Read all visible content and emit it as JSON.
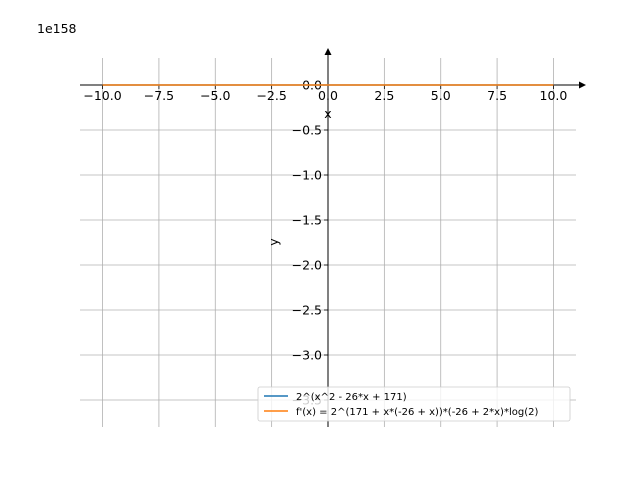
{
  "chart_data": {
    "type": "line",
    "title": "",
    "xlabel": "x",
    "ylabel": "y",
    "offset_text": "1e158",
    "xlim": [
      -11.0,
      11.0
    ],
    "ylim": [
      -3.8,
      0.3
    ],
    "x_ticks": [
      -10.0,
      -7.5,
      -5.0,
      -2.5,
      0.0,
      2.5,
      5.0,
      7.5,
      10.0
    ],
    "x_tick_labels": [
      "−10.0",
      "−7.5",
      "−5.0",
      "−2.5",
      "0.0",
      "2.5",
      "5.0",
      "7.5",
      "10.0"
    ],
    "y_ticks": [
      0.0,
      -0.5,
      -1.0,
      -1.5,
      -2.0,
      -2.5,
      -3.0,
      -3.5
    ],
    "y_tick_labels": [
      "0.0",
      "−0.5",
      "−1.0",
      "−1.5",
      "−2.0",
      "−2.5",
      "−3.0",
      "−3.5"
    ],
    "grid": true,
    "legend_position": "lower-right",
    "series": [
      {
        "name": "2^(x^2 - 26*x + 171)",
        "color": "#1f77b4",
        "x": [
          -10.0,
          -5.0,
          0.0,
          5.0,
          10.0
        ],
        "y": [
          0.0,
          0.0,
          0.0,
          0.0,
          0.0
        ]
      },
      {
        "name": "f'(x) = 2^(171 + x*(-26 + x))*(-26 + 2*x)*log(2)",
        "color": "#ff7f0e",
        "x": [
          -10.0,
          -5.0,
          0.0,
          5.0,
          10.0
        ],
        "y": [
          0.0,
          0.0,
          0.0,
          0.0,
          0.0
        ]
      }
    ]
  }
}
